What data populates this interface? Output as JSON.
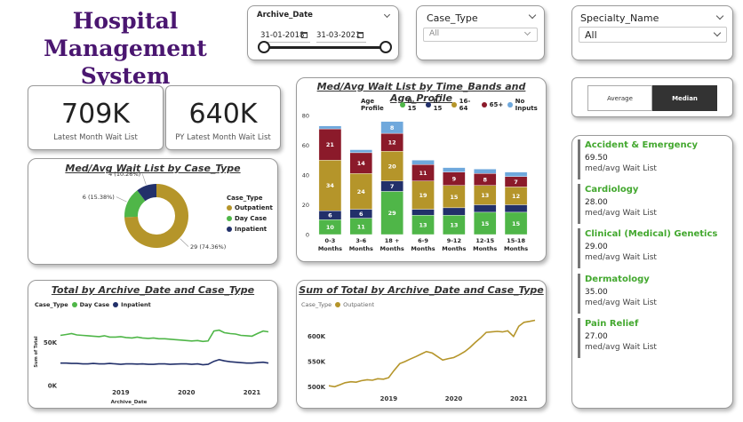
{
  "app": {
    "title_line1": "Hospital",
    "title_line2": "Management System"
  },
  "filters": {
    "archive_date": {
      "label": "Archive_Date",
      "start": "31-01-2018",
      "end": "31-03-2021"
    },
    "case_type": {
      "label": "Case_Type",
      "value": "All"
    },
    "specialty": {
      "label": "Specialty_Name",
      "value": "All"
    }
  },
  "kpis": [
    {
      "value": "709K",
      "label": "Latest Month Wait List"
    },
    {
      "value": "640K",
      "label": "PY Latest Month Wait List"
    }
  ],
  "toggle": {
    "options": [
      "Average",
      "Median"
    ],
    "selected": "Median"
  },
  "specialties": [
    {
      "name": "Accident & Emergency",
      "value": "69.50",
      "label": "med/avg Wait List"
    },
    {
      "name": "Cardiology",
      "value": "28.00",
      "label": "med/avg Wait List"
    },
    {
      "name": "Clinical (Medical) Genetics",
      "value": "29.00",
      "label": "med/avg Wait List"
    },
    {
      "name": "Dermatology",
      "value": "35.00",
      "label": "med/avg Wait List"
    },
    {
      "name": "Pain Relief",
      "value": "27.00",
      "label": "med/avg Wait List"
    }
  ],
  "colors": {
    "olive": "#b5952a",
    "green": "#4fb648",
    "navy": "#22306a",
    "maroon": "#8b1a2a",
    "lightblue": "#6fa8dc",
    "title": "#4a1670",
    "accent": "#43a82f"
  },
  "chart_data": [
    {
      "type": "pie",
      "title": "Med/Avg Wait List by Case_Type",
      "legend_title": "Case_Type",
      "legend_position": "right",
      "slices": [
        {
          "name": "Outpatient",
          "value": 29,
          "label": "29 (74.36%)",
          "color": "#b5952a"
        },
        {
          "name": "Day Case",
          "value": 6,
          "label": "6 (15.38%)",
          "color": "#4fb648"
        },
        {
          "name": "Inpatient",
          "value": 4,
          "label": "4 (10.26%)",
          "color": "#22306a"
        }
      ]
    },
    {
      "type": "bar",
      "stacked": true,
      "title": "Med/Avg Wait List by Time_Bands and Age_Profile",
      "legend_title": "Age Profile",
      "legend_position": "top",
      "categories": [
        "0-3 Months",
        "3-6 Months",
        "18 + Months",
        "6-9 Months",
        "9-12 Months",
        "12-15 Months",
        "15-18 Months"
      ],
      "series": [
        {
          "name": "0-15",
          "color": "#4fb648",
          "values": [
            10,
            11,
            29,
            13,
            13,
            15,
            15
          ]
        },
        {
          "name": "0-15",
          "color": "#22306a",
          "values": [
            6,
            6,
            7,
            4,
            5,
            5,
            5
          ]
        },
        {
          "name": "16-64",
          "color": "#b5952a",
          "values": [
            34,
            24,
            20,
            19,
            15,
            13,
            12
          ]
        },
        {
          "name": "65+",
          "color": "#8b1a2a",
          "values": [
            21,
            14,
            12,
            11,
            9,
            8,
            7
          ]
        },
        {
          "name": "No Inputs",
          "color": "#6fa8dc",
          "values": [
            2,
            2,
            8,
            3,
            3,
            3,
            3
          ]
        }
      ],
      "segment_labels": [
        [
          "10",
          "6",
          "34",
          "21",
          ""
        ],
        [
          "11",
          "6",
          "24",
          "14",
          ""
        ],
        [
          "29",
          "7",
          "20",
          "12",
          "8"
        ],
        [
          "13",
          "",
          "19",
          "11",
          ""
        ],
        [
          "13",
          "",
          "15",
          "9",
          ""
        ],
        [
          "15",
          "",
          "13",
          "8",
          ""
        ],
        [
          "15",
          "",
          "12",
          "7",
          ""
        ]
      ],
      "ylim": [
        0,
        80
      ],
      "yticks": [
        0,
        20,
        40,
        60,
        80
      ],
      "xlabel": "",
      "ylabel": ""
    },
    {
      "type": "line",
      "title": "Total by Archive_Date and Case_Type",
      "legend_title": "Case_Type",
      "legend_position": "top-left",
      "xlabel": "Archive_Date",
      "ylabel": "Sum of Total",
      "xlim": [
        2018.08,
        2021.25
      ],
      "xticks": [
        "2019",
        "2020",
        "2021"
      ],
      "ylim": [
        0,
        80000
      ],
      "yticks": [
        "0K",
        "50K"
      ],
      "series": [
        {
          "name": "Day Case",
          "color": "#4fb648",
          "x": [
            2018.08,
            2018.17,
            2018.25,
            2018.33,
            2018.42,
            2018.5,
            2018.58,
            2018.67,
            2018.75,
            2018.83,
            2018.92,
            2019.0,
            2019.08,
            2019.17,
            2019.25,
            2019.33,
            2019.42,
            2019.5,
            2019.58,
            2019.67,
            2019.75,
            2019.83,
            2019.92,
            2020.0,
            2020.08,
            2020.17,
            2020.25,
            2020.33,
            2020.42,
            2020.5,
            2020.58,
            2020.67,
            2020.75,
            2020.83,
            2020.92,
            2021.0,
            2021.08,
            2021.17,
            2021.25
          ],
          "y": [
            58000,
            59000,
            60000,
            58500,
            58000,
            57500,
            57000,
            56500,
            57500,
            56000,
            56000,
            56500,
            55500,
            55000,
            56000,
            55000,
            54500,
            55000,
            54000,
            54000,
            53500,
            53000,
            52500,
            52000,
            51500,
            52000,
            51000,
            51500,
            63000,
            64000,
            61000,
            60000,
            59500,
            58000,
            57500,
            57000,
            60000,
            63000,
            62000
          ]
        },
        {
          "name": "Inpatient",
          "color": "#22306a",
          "x": [
            2018.08,
            2018.17,
            2018.25,
            2018.33,
            2018.42,
            2018.5,
            2018.58,
            2018.67,
            2018.75,
            2018.83,
            2018.92,
            2019.0,
            2019.08,
            2019.17,
            2019.25,
            2019.33,
            2019.42,
            2019.5,
            2019.58,
            2019.67,
            2019.75,
            2019.83,
            2019.92,
            2020.0,
            2020.08,
            2020.17,
            2020.25,
            2020.33,
            2020.42,
            2020.5,
            2020.58,
            2020.67,
            2020.75,
            2020.83,
            2020.92,
            2021.0,
            2021.08,
            2021.17,
            2021.25
          ],
          "y": [
            26000,
            26000,
            25500,
            25500,
            25000,
            25000,
            25500,
            25000,
            25000,
            25500,
            25000,
            24500,
            25000,
            25000,
            24800,
            25000,
            24500,
            24500,
            25000,
            25000,
            24500,
            24800,
            25000,
            25000,
            24500,
            25000,
            24000,
            24500,
            28000,
            30000,
            28500,
            27500,
            27000,
            26500,
            26000,
            26000,
            26500,
            27000,
            26000
          ]
        }
      ]
    },
    {
      "type": "line",
      "title": "Sum of Total by Archive_Date and Case_Type",
      "legend_title": "Case_Type",
      "legend_position": "top-left",
      "xlabel": "",
      "ylabel": "",
      "xlim": [
        2018.08,
        2021.25
      ],
      "xticks": [
        "2019",
        "2020",
        "2021"
      ],
      "ylim": [
        490000,
        640000
      ],
      "yticks": [
        "500K",
        "550K",
        "600K"
      ],
      "series": [
        {
          "name": "Outpatient",
          "color": "#b5952a",
          "x": [
            2018.08,
            2018.17,
            2018.25,
            2018.33,
            2018.42,
            2018.5,
            2018.58,
            2018.67,
            2018.75,
            2018.83,
            2018.92,
            2019.0,
            2019.08,
            2019.17,
            2019.25,
            2019.33,
            2019.42,
            2019.5,
            2019.58,
            2019.67,
            2019.75,
            2019.83,
            2019.92,
            2020.0,
            2020.08,
            2020.17,
            2020.25,
            2020.33,
            2020.42,
            2020.5,
            2020.58,
            2020.67,
            2020.75,
            2020.83,
            2020.92,
            2021.0,
            2021.08,
            2021.17,
            2021.25
          ],
          "y": [
            502000,
            500000,
            504000,
            508000,
            510000,
            509000,
            512000,
            514000,
            513000,
            516000,
            515000,
            518000,
            532000,
            546000,
            550000,
            555000,
            560000,
            565000,
            570000,
            567000,
            560000,
            553000,
            556000,
            558000,
            563000,
            570000,
            578000,
            588000,
            598000,
            608000,
            609000,
            610000,
            609000,
            611000,
            600000,
            620000,
            628000,
            630000,
            632000
          ]
        }
      ]
    }
  ]
}
